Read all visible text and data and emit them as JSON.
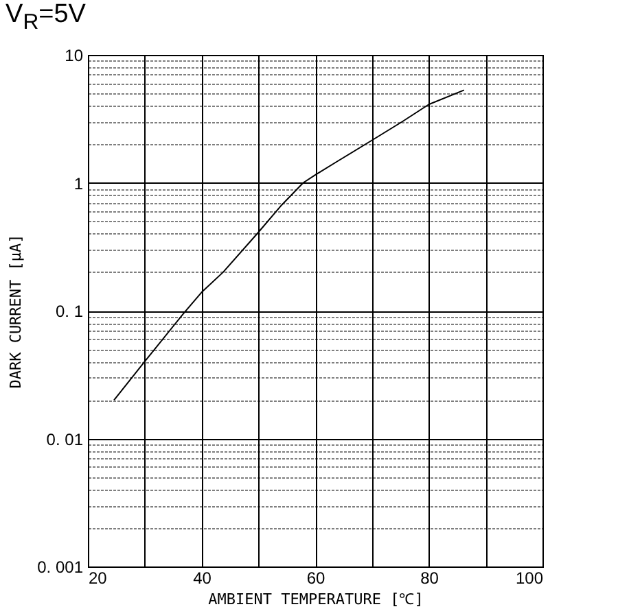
{
  "chart_data": {
    "type": "line",
    "title": "V$_{R}$=5V",
    "xlabel": "AMBIENT TEMPERATURE  [℃]",
    "ylabel": "DARK CURRENT  [μA]",
    "x": [
      24.6,
      30,
      36.9,
      40,
      43.8,
      50,
      54.1,
      57.9,
      60,
      64,
      70,
      75.3,
      80,
      86.2
    ],
    "series": [
      {
        "color": "#000000",
        "values": [
          0.02,
          0.04,
          0.096,
          0.139,
          0.2,
          0.41,
          0.67,
          1.0,
          1.15,
          1.48,
          2.15,
          3.0,
          4.1,
          5.3
        ]
      }
    ],
    "xlim": [
      20,
      100
    ],
    "xticks": [
      20,
      {
        "value": 30,
        "label": null
      },
      40,
      {
        "value": 50,
        "label": null
      },
      60,
      {
        "value": 70,
        "label": null
      },
      80,
      {
        "value": 90,
        "label": null
      },
      100
    ],
    "ylim": [
      0.001,
      10
    ],
    "log": "y",
    "yticks": [
      {
        "value": 0.001,
        "label": "0. 001"
      },
      {
        "value": 0.002,
        "label": null
      },
      {
        "value": 0.003,
        "label": null
      },
      {
        "value": 0.004,
        "label": null
      },
      {
        "value": 0.005,
        "label": null
      },
      {
        "value": 0.006,
        "label": null
      },
      {
        "value": 0.007,
        "label": null
      },
      {
        "value": 0.008,
        "label": null
      },
      {
        "value": 0.009,
        "label": null
      },
      {
        "value": 0.01,
        "label": "0. 01"
      },
      {
        "value": 0.02,
        "label": null
      },
      {
        "value": 0.03,
        "label": null
      },
      {
        "value": 0.04,
        "label": null
      },
      {
        "value": 0.05,
        "label": null
      },
      {
        "value": 0.06,
        "label": null
      },
      {
        "value": 0.07,
        "label": null
      },
      {
        "value": 0.08,
        "label": null
      },
      {
        "value": 0.09,
        "label": null
      },
      {
        "value": 0.1,
        "label": "0. 1"
      },
      {
        "value": 0.2,
        "label": null
      },
      {
        "value": 0.3,
        "label": null
      },
      {
        "value": 0.4,
        "label": null
      },
      {
        "value": 0.5,
        "label": null
      },
      {
        "value": 0.6,
        "label": null
      },
      {
        "value": 0.7,
        "label": null
      },
      {
        "value": 0.8,
        "label": null
      },
      {
        "value": 0.9,
        "label": null
      },
      1,
      {
        "value": 2,
        "label": null
      },
      {
        "value": 3,
        "label": null
      },
      {
        "value": 4,
        "label": null
      },
      {
        "value": 5,
        "label": null
      },
      {
        "value": 6,
        "label": null
      },
      {
        "value": 7,
        "label": null
      },
      {
        "value": 8,
        "label": null
      },
      {
        "value": 9,
        "label": null
      },
      10
    ],
    "grid": true,
    "marker": "none",
    "line_style": "solid"
  }
}
